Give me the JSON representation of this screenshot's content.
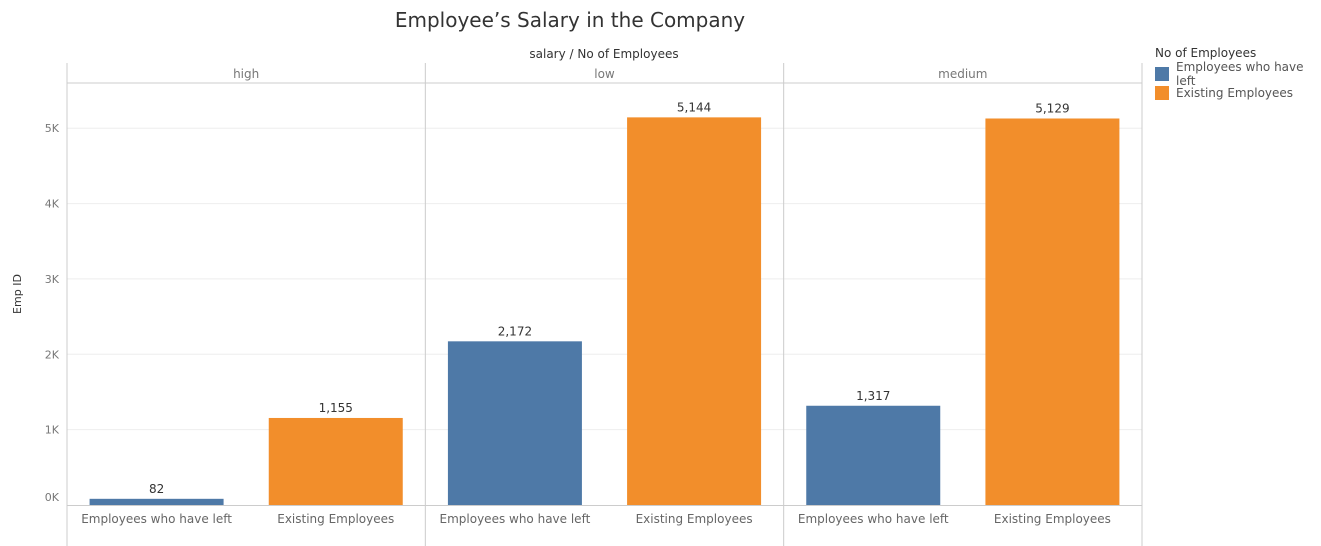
{
  "chart_data": {
    "type": "bar",
    "title": "Employee’s Salary in the Company",
    "column_header": "salary  /  No of Employees",
    "ylabel": "Emp ID",
    "ylim": [
      0,
      5600
    ],
    "y_ticks": [
      0,
      1000,
      2000,
      3000,
      4000,
      5000
    ],
    "y_tick_labels": [
      "0K",
      "1K",
      "2K",
      "3K",
      "4K",
      "5K"
    ],
    "grid": true,
    "legend_title": "No of Employees",
    "legend_position": "top-right",
    "series": [
      {
        "name": "Employees who have left",
        "color": "#4e79a7"
      },
      {
        "name": "Existing Employees",
        "color": "#f28e2b"
      }
    ],
    "panels": [
      {
        "salary": "high",
        "categories": [
          "Employees who have left",
          "Existing Employees"
        ],
        "values": [
          82,
          1155
        ],
        "labels": [
          "82",
          "1,155"
        ]
      },
      {
        "salary": "low",
        "categories": [
          "Employees who have left",
          "Existing Employees"
        ],
        "values": [
          2172,
          5144
        ],
        "labels": [
          "2,172",
          "5,144"
        ]
      },
      {
        "salary": "medium",
        "categories": [
          "Employees who have left",
          "Existing Employees"
        ],
        "values": [
          1317,
          5129
        ],
        "labels": [
          "1,317",
          "5,129"
        ]
      }
    ]
  }
}
